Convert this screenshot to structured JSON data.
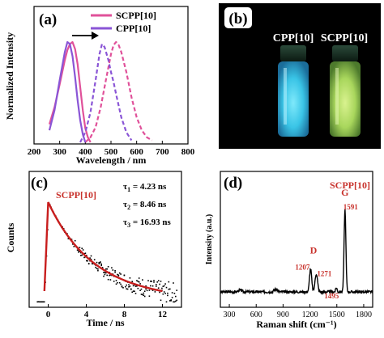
{
  "panels": {
    "a": "(a)",
    "b": "(b)",
    "c": "(c)",
    "d": "(d)"
  },
  "colors": {
    "scpp": "#e0519a",
    "cpp": "#8a55d6",
    "decay_fit": "#c81e1e",
    "decay_points": "#000000",
    "label_red": "#c8322c",
    "vial_blue": "#4fd6ee",
    "vial_green": "#b6e36a"
  },
  "chart_data": [
    {
      "id": "a",
      "type": "line",
      "xlabel": "Wavelength / nm",
      "ylabel": "Normalized Intensity",
      "xlim": [
        200,
        800
      ],
      "xticks": [
        "200",
        "300",
        "400",
        "500",
        "600",
        "700",
        "800"
      ],
      "legend": [
        "SCPP[10]",
        "CPP[10]"
      ],
      "legend_position": "top-right",
      "annotation": "arrow pointing right",
      "series": [
        {
          "name": "SCPP[10]",
          "style": "solid",
          "x": [
            260,
            280,
            300,
            320,
            330,
            340,
            350,
            360,
            370,
            380,
            390,
            400,
            410,
            420
          ],
          "y": [
            0.18,
            0.35,
            0.58,
            0.82,
            0.92,
            0.98,
            1.0,
            0.93,
            0.78,
            0.55,
            0.32,
            0.14,
            0.05,
            0.0
          ]
        },
        {
          "name": "SCPP[10]",
          "style": "dashed",
          "x": [
            400,
            420,
            440,
            460,
            480,
            500,
            510,
            520,
            530,
            540,
            560,
            580,
            600,
            620,
            640,
            660
          ],
          "y": [
            0.0,
            0.05,
            0.15,
            0.35,
            0.62,
            0.88,
            0.97,
            1.0,
            0.97,
            0.9,
            0.7,
            0.45,
            0.25,
            0.12,
            0.05,
            0.02
          ]
        },
        {
          "name": "CPP[10]",
          "style": "solid",
          "x": [
            260,
            280,
            300,
            320,
            330,
            340,
            350,
            360,
            370,
            380,
            390,
            400
          ],
          "y": [
            0.12,
            0.32,
            0.62,
            0.9,
            1.0,
            0.98,
            0.86,
            0.65,
            0.42,
            0.22,
            0.08,
            0.0
          ]
        },
        {
          "name": "CPP[10]",
          "style": "dashed",
          "x": [
            380,
            400,
            420,
            440,
            455,
            465,
            475,
            490,
            500,
            510,
            520,
            540,
            560,
            580
          ],
          "y": [
            0.0,
            0.1,
            0.3,
            0.62,
            0.88,
            0.98,
            0.95,
            0.82,
            0.7,
            0.6,
            0.48,
            0.25,
            0.1,
            0.02
          ]
        }
      ]
    },
    {
      "id": "c",
      "type": "scatter",
      "xlabel": "Time / ns",
      "ylabel": "Counts",
      "xlim": [
        -2,
        14
      ],
      "xticks": [
        "0",
        "4",
        "8",
        "12"
      ],
      "sample_label": "SCPP[10]",
      "lifetimes": [
        {
          "symbol": "τ",
          "sub": "1",
          "text": " = 4.23 ns"
        },
        {
          "symbol": "τ",
          "sub": "2",
          "text": " = 8.46 ns"
        },
        {
          "symbol": "τ",
          "sub": "3",
          "text": " = 16.93 ns"
        }
      ],
      "fit": {
        "x0": 0,
        "amplitude": 1.0,
        "tau": [
          4.23,
          8.46,
          16.93
        ],
        "weights": [
          0.72,
          0.24,
          0.04
        ]
      },
      "baseline": 0.02
    },
    {
      "id": "d",
      "type": "line",
      "xlabel": "Raman shift (cm⁻¹)",
      "ylabel": "Intensity (a.u.)",
      "xlim": [
        200,
        1900
      ],
      "xticks": [
        "300",
        "600",
        "900",
        "1200",
        "1500",
        "1800"
      ],
      "sample_label": "SCPP[10]",
      "band_labels": [
        {
          "text": "D",
          "x": 1240
        },
        {
          "text": "G",
          "x": 1591
        }
      ],
      "peaks": [
        {
          "shift": 1207,
          "label": "1207",
          "intensity": 0.28
        },
        {
          "shift": 1271,
          "label": "1271",
          "intensity": 0.22
        },
        {
          "shift": 1495,
          "label": "1495",
          "intensity": 0.05
        },
        {
          "shift": 1591,
          "label": "1591",
          "intensity": 1.0
        }
      ]
    }
  ],
  "photo": {
    "labels": [
      "CPP[10]",
      "SCPP[10]"
    ]
  }
}
